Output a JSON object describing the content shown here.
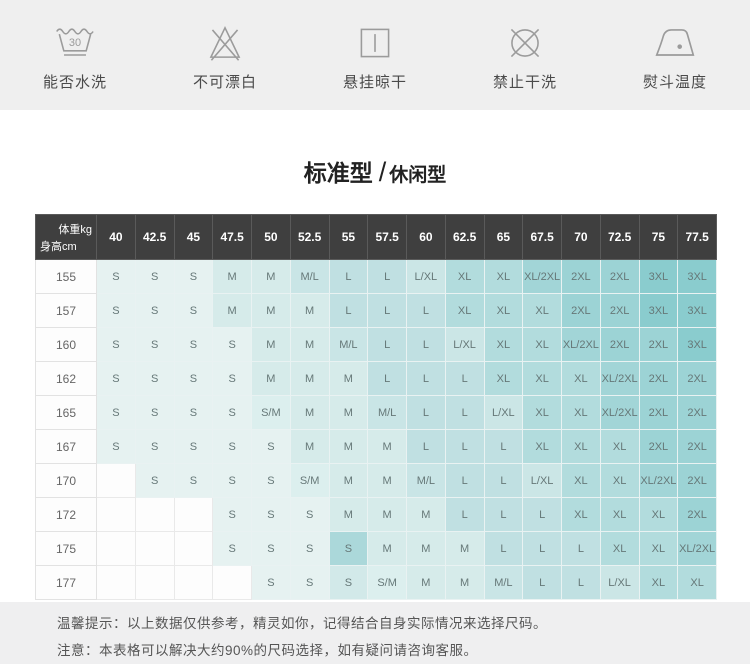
{
  "care_icons": [
    {
      "icon": "wash-30-icon",
      "badge": "30",
      "label": "能否水洗"
    },
    {
      "icon": "no-bleach-icon",
      "badge": "",
      "label": "不可漂白"
    },
    {
      "icon": "hang-dry-icon",
      "badge": "",
      "label": "悬挂晾干"
    },
    {
      "icon": "no-dry-clean-icon",
      "badge": "",
      "label": "禁止干洗"
    },
    {
      "icon": "iron-temp-icon",
      "badge": "",
      "label": "熨斗温度"
    }
  ],
  "size_chart": {
    "title_main": "标准型",
    "title_sep": "/",
    "title_sub": "休闲型",
    "corner": {
      "top": "体重kg",
      "bottom": "身高cm"
    },
    "weights": [
      "40",
      "42.5",
      "45",
      "47.5",
      "50",
      "52.5",
      "55",
      "57.5",
      "60",
      "62.5",
      "65",
      "67.5",
      "70",
      "72.5",
      "75",
      "77.5"
    ],
    "rows": [
      {
        "height": "155",
        "cells": [
          "S",
          "S",
          "S",
          "M",
          "M",
          "M/L",
          "L",
          "L",
          "L/XL",
          "XL",
          "XL",
          "XL/2XL",
          "2XL",
          "2XL",
          "3XL",
          "3XL"
        ]
      },
      {
        "height": "157",
        "cells": [
          "S",
          "S",
          "S",
          "M",
          "M",
          "M",
          "L",
          "L",
          "L",
          "XL",
          "XL",
          "XL",
          "2XL",
          "2XL",
          "3XL",
          "3XL"
        ]
      },
      {
        "height": "160",
        "cells": [
          "S",
          "S",
          "S",
          "S",
          "M",
          "M",
          "M/L",
          "L",
          "L",
          "L/XL",
          "XL",
          "XL",
          "XL/2XL",
          "2XL",
          "2XL",
          "3XL"
        ]
      },
      {
        "height": "162",
        "cells": [
          "S",
          "S",
          "S",
          "S",
          "M",
          "M",
          "M",
          "L",
          "L",
          "L",
          "XL",
          "XL",
          "XL",
          "XL/2XL",
          "2XL",
          "2XL"
        ]
      },
      {
        "height": "165",
        "cells": [
          "S",
          "S",
          "S",
          "S",
          "S/M",
          "M",
          "M",
          "M/L",
          "L",
          "L",
          "L/XL",
          "XL",
          "XL",
          "XL/2XL",
          "2XL",
          "2XL"
        ]
      },
      {
        "height": "167",
        "cells": [
          "S",
          "S",
          "S",
          "S",
          "S",
          "M",
          "M",
          "M",
          "L",
          "L",
          "L",
          "XL",
          "XL",
          "XL",
          "2XL",
          "2XL"
        ]
      },
      {
        "height": "170",
        "cells": [
          "",
          "S",
          "S",
          "S",
          "S",
          "S/M",
          "M",
          "M",
          "M/L",
          "L",
          "L",
          "L/XL",
          "XL",
          "XL",
          "XL/2XL",
          "2XL"
        ]
      },
      {
        "height": "172",
        "cells": [
          "",
          "",
          "",
          "S",
          "S",
          "S",
          "M",
          "M",
          "M",
          "L",
          "L",
          "L",
          "XL",
          "XL",
          "XL",
          "2XL"
        ]
      },
      {
        "height": "175",
        "cells": [
          "",
          "",
          "",
          "S",
          "S",
          "S",
          "S",
          "M",
          "M",
          "M",
          "L",
          "L",
          "L",
          "XL",
          "XL",
          "XL/2XL"
        ]
      },
      {
        "height": "177",
        "cells": [
          "",
          "",
          "",
          "",
          "S",
          "S",
          "S",
          "S/M",
          "M",
          "M",
          "M/L",
          "L",
          "L",
          "L/XL",
          "XL",
          "XL"
        ]
      }
    ],
    "size_colors": {
      "S": "#e6f2f1",
      "S/M": "#dcefee",
      "M": "#d6ebea",
      "M/L": "#c9e5e6",
      "L": "#c0e0e2",
      "L/XL": "#cbe6e6",
      "XL": "#b2dcdd",
      "XL/2XL": "#a2d5d7",
      "2XL": "#9cd3d5",
      "3XL": "#8accce",
      "": "#fdfdfd"
    },
    "color_overrides": [
      {
        "row": 8,
        "col": 6,
        "color": "#abd8da"
      },
      {
        "row": 9,
        "col": 6,
        "color": "#d2e9e9"
      }
    ]
  },
  "notes": {
    "line1": "温馨提示：以上数据仅供参考，精灵如你，记得结合自身实际情况来选择尺码。",
    "line2": "注意：本表格可以解决大约90%的尺码选择，如有疑问请咨询客服。"
  },
  "colors": {
    "header_bg": "#3f3f3f",
    "band_bg": "#efefef",
    "accent_teal": "#8accce"
  }
}
